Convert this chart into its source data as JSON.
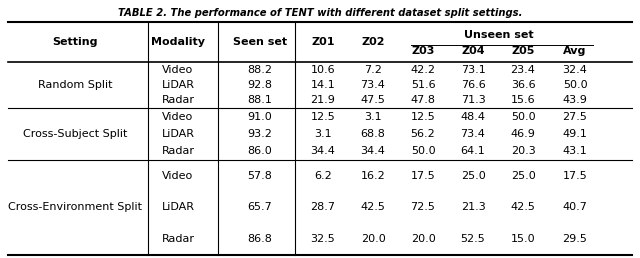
{
  "title": "TABLE 2. The performance of TENT with different dataset split settings.",
  "rows": [
    {
      "setting": "Random Split",
      "modalities": [
        "Video",
        "LiDAR",
        "Radar"
      ],
      "seen": [
        "88.2",
        "92.8",
        "88.1"
      ],
      "Z01": [
        "10.6",
        "14.1",
        "21.9"
      ],
      "Z02": [
        "7.2",
        "73.4",
        "47.5"
      ],
      "Z03": [
        "42.2",
        "51.6",
        "47.8"
      ],
      "Z04": [
        "73.1",
        "76.6",
        "71.3"
      ],
      "Z05": [
        "23.4",
        "36.6",
        "15.6"
      ],
      "Avg": [
        "32.4",
        "50.0",
        "43.9"
      ]
    },
    {
      "setting": "Cross-Subject Split",
      "modalities": [
        "Video",
        "LiDAR",
        "Radar"
      ],
      "seen": [
        "91.0",
        "93.2",
        "86.0"
      ],
      "Z01": [
        "12.5",
        "3.1",
        "34.4"
      ],
      "Z02": [
        "3.1",
        "68.8",
        "34.4"
      ],
      "Z03": [
        "12.5",
        "56.2",
        "50.0"
      ],
      "Z04": [
        "48.4",
        "73.4",
        "64.1"
      ],
      "Z05": [
        "50.0",
        "46.9",
        "20.3"
      ],
      "Avg": [
        "27.5",
        "49.1",
        "43.1"
      ]
    },
    {
      "setting": "Cross-Environment Split",
      "modalities": [
        "Video",
        "LiDAR",
        "Radar"
      ],
      "seen": [
        "57.8",
        "65.7",
        "86.8"
      ],
      "Z01": [
        "6.2",
        "28.7",
        "32.5"
      ],
      "Z02": [
        "16.2",
        "42.5",
        "20.0"
      ],
      "Z03": [
        "17.5",
        "72.5",
        "20.0"
      ],
      "Z04": [
        "25.0",
        "21.3",
        "52.5"
      ],
      "Z05": [
        "25.0",
        "42.5",
        "15.0"
      ],
      "Avg": [
        "17.5",
        "40.7",
        "29.5"
      ]
    }
  ],
  "background_color": "#ffffff",
  "font_size": 8.0,
  "title_font_size": 7.2
}
